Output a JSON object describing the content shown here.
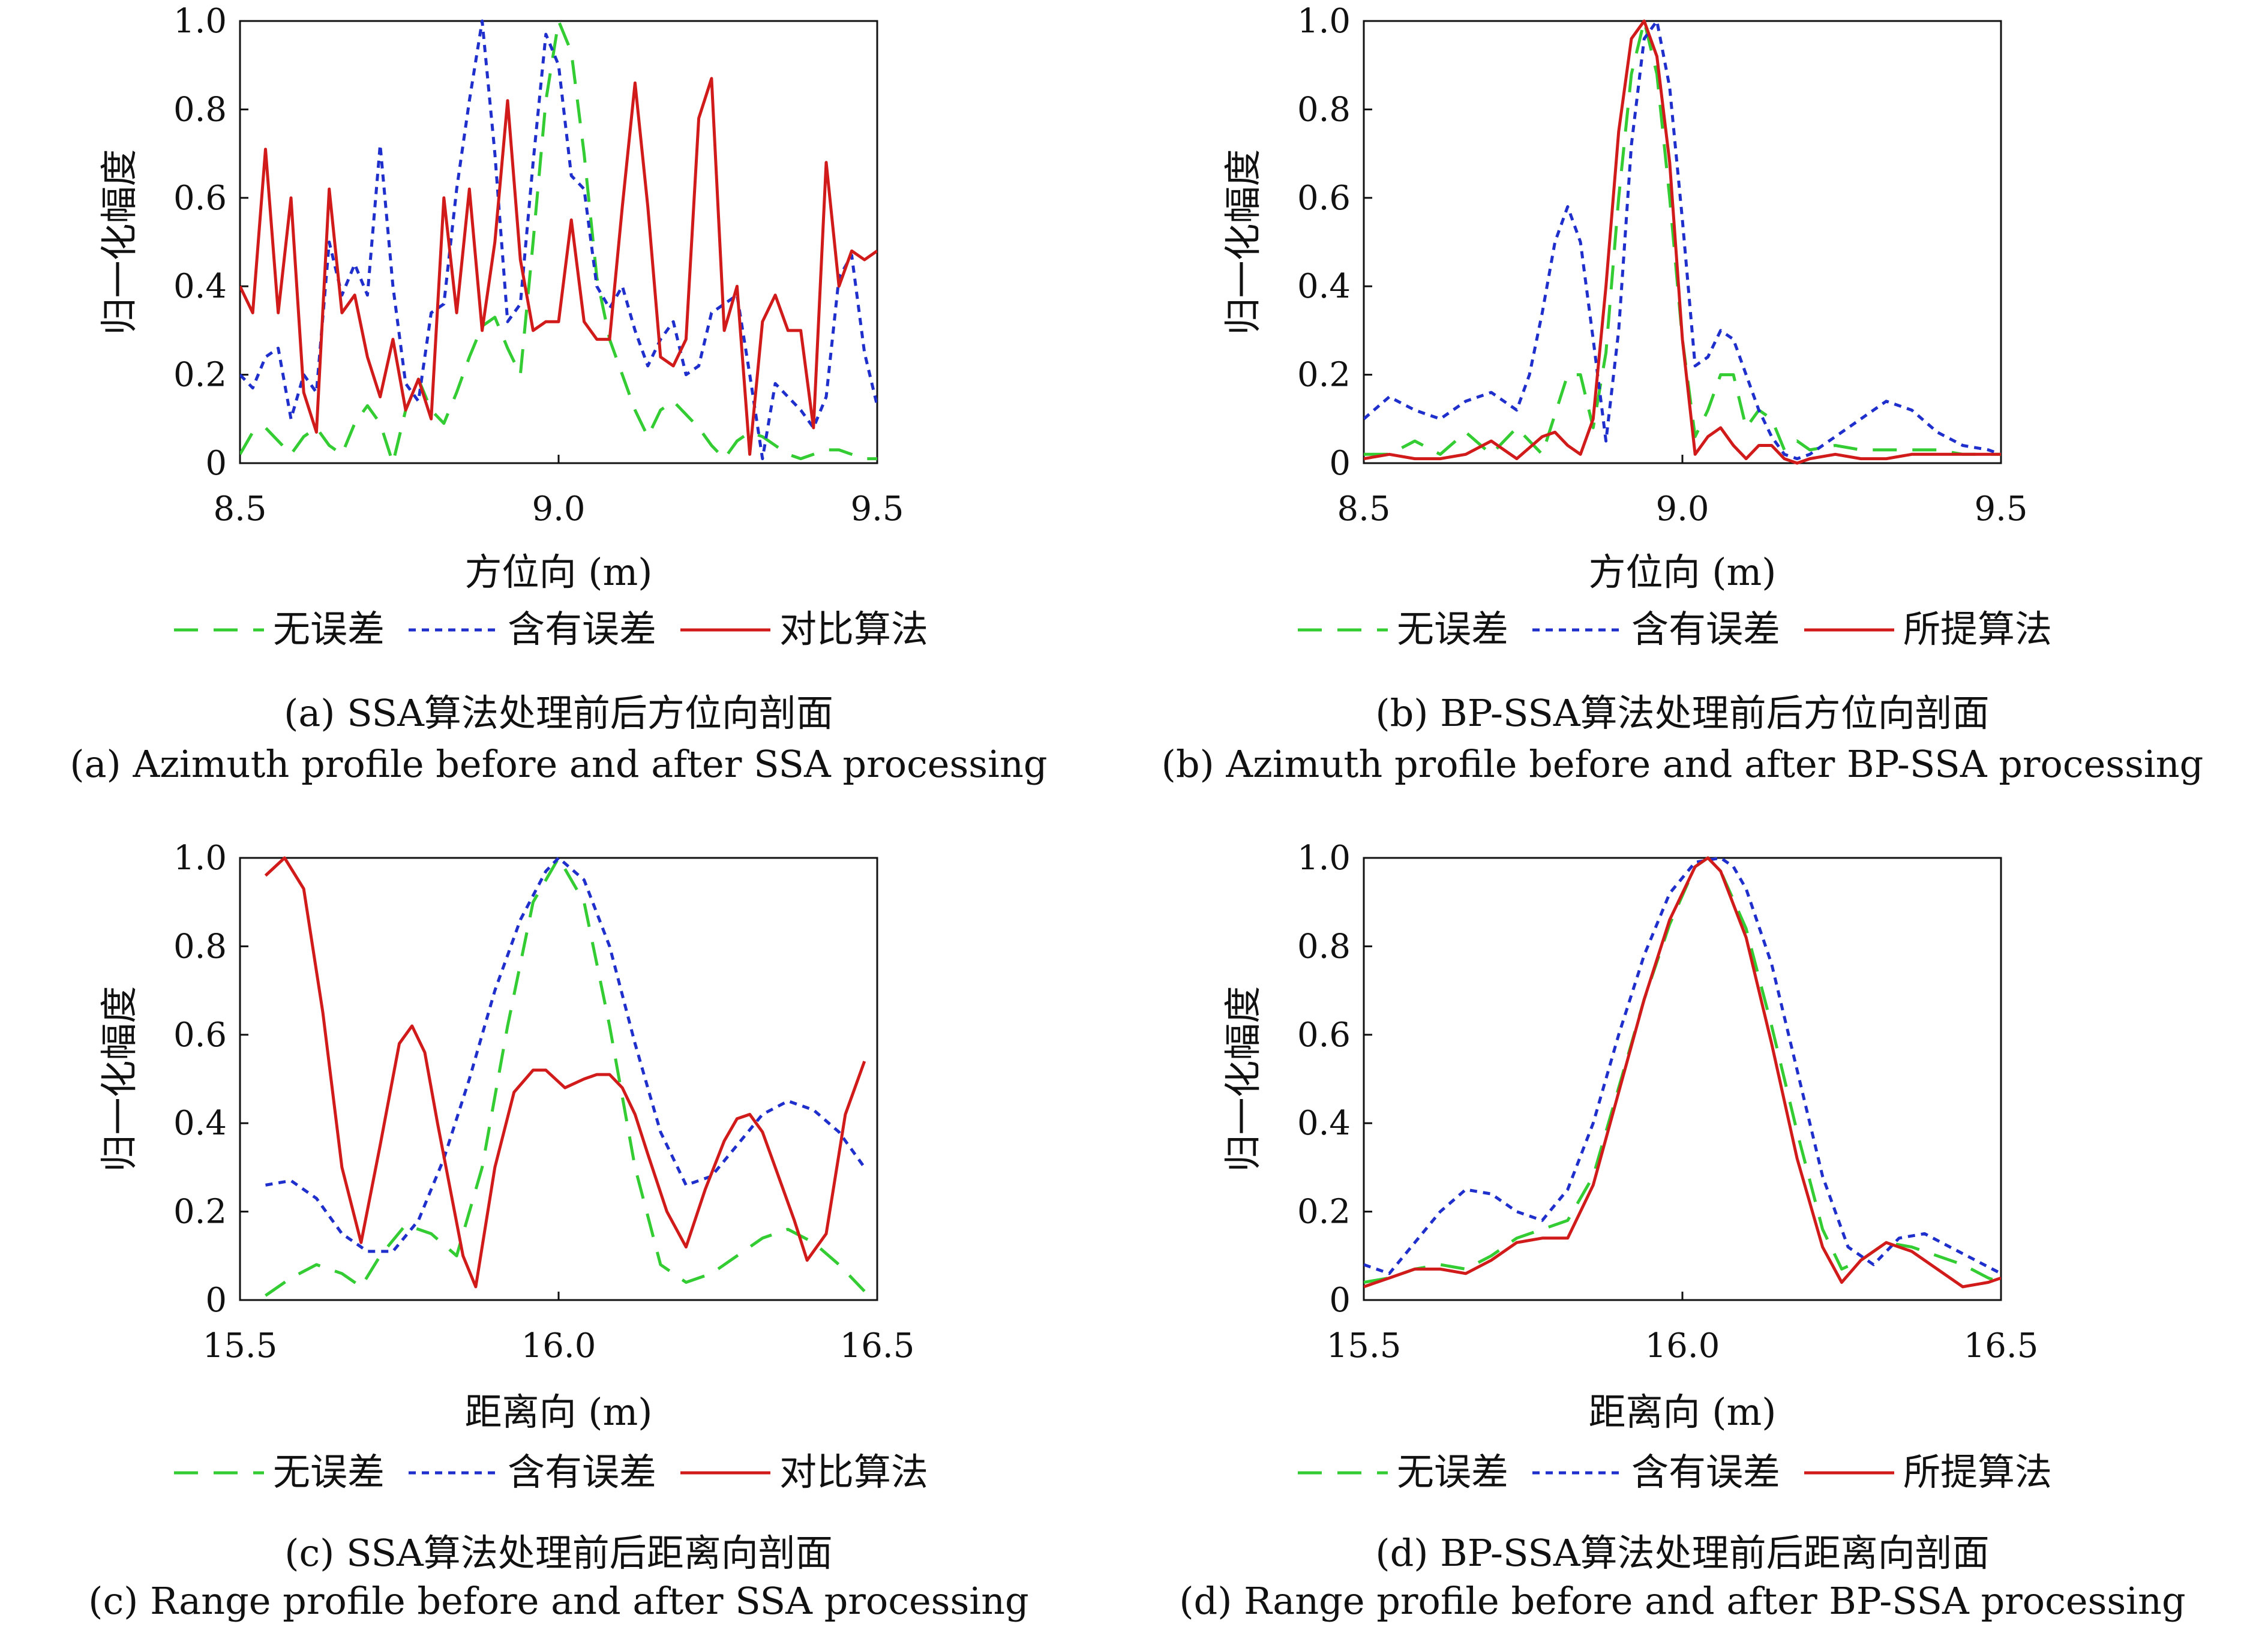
{
  "chart_data": [
    {
      "type": "line",
      "id": "a",
      "xlabel": "方位向 (m)",
      "ylabel": "归一化幅度",
      "xlim": [
        8.5,
        9.5
      ],
      "ylim": [
        0,
        1.0
      ],
      "xticks": [
        "8.5",
        "9.0",
        "9.5"
      ],
      "yticks": [
        "0",
        "0.2",
        "0.4",
        "0.6",
        "0.8",
        "1.0"
      ],
      "legend_position": "below",
      "series": [
        {
          "name": "无误差",
          "color": "#33cc33",
          "style": "dashed",
          "x": [
            8.5,
            8.52,
            8.54,
            8.56,
            8.58,
            8.6,
            8.62,
            8.64,
            8.66,
            8.68,
            8.7,
            8.72,
            8.74,
            8.76,
            8.78,
            8.8,
            8.82,
            8.84,
            8.86,
            8.88,
            8.9,
            8.92,
            8.94,
            8.96,
            8.98,
            9.0,
            9.02,
            9.04,
            9.06,
            9.08,
            9.1,
            9.12,
            9.14,
            9.16,
            9.18,
            9.2,
            9.22,
            9.24,
            9.26,
            9.28,
            9.3,
            9.32,
            9.34,
            9.36,
            9.38,
            9.4,
            9.42,
            9.44,
            9.46,
            9.48,
            9.5
          ],
          "y": [
            0.02,
            0.07,
            0.08,
            0.05,
            0.02,
            0.06,
            0.08,
            0.04,
            0.02,
            0.09,
            0.13,
            0.09,
            0.0,
            0.12,
            0.19,
            0.12,
            0.09,
            0.16,
            0.24,
            0.31,
            0.33,
            0.26,
            0.2,
            0.5,
            0.82,
            1.0,
            0.93,
            0.7,
            0.42,
            0.28,
            0.2,
            0.12,
            0.06,
            0.12,
            0.14,
            0.11,
            0.08,
            0.04,
            0.01,
            0.05,
            0.07,
            0.06,
            0.04,
            0.02,
            0.01,
            0.02,
            0.03,
            0.03,
            0.02,
            0.01,
            0.01
          ]
        },
        {
          "name": "含有误差",
          "color": "#1f2fcc",
          "style": "dotted",
          "x": [
            8.5,
            8.52,
            8.54,
            8.56,
            8.58,
            8.6,
            8.62,
            8.64,
            8.66,
            8.68,
            8.7,
            8.72,
            8.74,
            8.76,
            8.78,
            8.8,
            8.82,
            8.84,
            8.86,
            8.88,
            8.9,
            8.92,
            8.94,
            8.96,
            8.98,
            9.0,
            9.02,
            9.04,
            9.06,
            9.08,
            9.1,
            9.12,
            9.14,
            9.16,
            9.18,
            9.2,
            9.22,
            9.24,
            9.26,
            9.28,
            9.3,
            9.32,
            9.34,
            9.36,
            9.38,
            9.4,
            9.42,
            9.44,
            9.46,
            9.48,
            9.5
          ],
          "y": [
            0.2,
            0.17,
            0.24,
            0.26,
            0.1,
            0.2,
            0.16,
            0.5,
            0.38,
            0.45,
            0.38,
            0.72,
            0.4,
            0.18,
            0.14,
            0.34,
            0.36,
            0.62,
            0.82,
            1.0,
            0.7,
            0.32,
            0.36,
            0.68,
            0.97,
            0.9,
            0.65,
            0.62,
            0.4,
            0.35,
            0.4,
            0.3,
            0.22,
            0.28,
            0.32,
            0.2,
            0.22,
            0.34,
            0.36,
            0.38,
            0.2,
            0.01,
            0.18,
            0.15,
            0.12,
            0.08,
            0.15,
            0.42,
            0.47,
            0.25,
            0.13
          ]
        },
        {
          "name": "对比算法",
          "color": "#d11a1a",
          "style": "solid",
          "x": [
            8.5,
            8.52,
            8.54,
            8.56,
            8.58,
            8.6,
            8.62,
            8.64,
            8.66,
            8.68,
            8.7,
            8.72,
            8.74,
            8.76,
            8.78,
            8.8,
            8.82,
            8.84,
            8.86,
            8.88,
            8.9,
            8.92,
            8.94,
            8.96,
            8.98,
            9.0,
            9.02,
            9.04,
            9.06,
            9.08,
            9.1,
            9.12,
            9.14,
            9.16,
            9.18,
            9.2,
            9.22,
            9.24,
            9.26,
            9.28,
            9.3,
            9.32,
            9.34,
            9.36,
            9.38,
            9.4,
            9.42,
            9.44,
            9.46,
            9.48,
            9.5
          ],
          "y": [
            0.4,
            0.34,
            0.71,
            0.34,
            0.6,
            0.16,
            0.07,
            0.62,
            0.34,
            0.38,
            0.24,
            0.15,
            0.28,
            0.12,
            0.19,
            0.1,
            0.6,
            0.34,
            0.62,
            0.3,
            0.5,
            0.82,
            0.46,
            0.3,
            0.32,
            0.32,
            0.55,
            0.32,
            0.28,
            0.28,
            0.58,
            0.86,
            0.58,
            0.24,
            0.22,
            0.28,
            0.78,
            0.87,
            0.3,
            0.4,
            0.02,
            0.32,
            0.38,
            0.3,
            0.3,
            0.08,
            0.68,
            0.4,
            0.48,
            0.46,
            0.48
          ]
        }
      ]
    },
    {
      "type": "line",
      "id": "b",
      "xlabel": "方位向 (m)",
      "ylabel": "归一化幅度",
      "xlim": [
        8.5,
        9.5
      ],
      "ylim": [
        0,
        1.0
      ],
      "xticks": [
        "8.5",
        "9.0",
        "9.5"
      ],
      "yticks": [
        "0",
        "0.2",
        "0.4",
        "0.6",
        "0.8",
        "1.0"
      ],
      "legend_position": "below",
      "series": [
        {
          "name": "无误差",
          "color": "#33cc33",
          "style": "dashed",
          "x": [
            8.5,
            8.54,
            8.58,
            8.62,
            8.66,
            8.7,
            8.74,
            8.78,
            8.82,
            8.84,
            8.86,
            8.88,
            8.9,
            8.92,
            8.94,
            8.96,
            8.98,
            9.0,
            9.02,
            9.04,
            9.06,
            9.08,
            9.1,
            9.12,
            9.14,
            9.16,
            9.18,
            9.2,
            9.24,
            9.28,
            9.32,
            9.36,
            9.4,
            9.44,
            9.48,
            9.5
          ],
          "y": [
            0.02,
            0.02,
            0.05,
            0.02,
            0.07,
            0.02,
            0.08,
            0.02,
            0.2,
            0.2,
            0.08,
            0.25,
            0.6,
            0.88,
            1.0,
            0.88,
            0.6,
            0.28,
            0.06,
            0.12,
            0.2,
            0.2,
            0.08,
            0.12,
            0.1,
            0.03,
            0.05,
            0.03,
            0.04,
            0.03,
            0.03,
            0.03,
            0.03,
            0.02,
            0.02,
            0.02
          ]
        },
        {
          "name": "含有误差",
          "color": "#1f2fcc",
          "style": "dotted",
          "x": [
            8.5,
            8.54,
            8.58,
            8.62,
            8.66,
            8.7,
            8.74,
            8.76,
            8.78,
            8.8,
            8.82,
            8.84,
            8.86,
            8.88,
            8.9,
            8.92,
            8.94,
            8.96,
            8.98,
            9.0,
            9.02,
            9.04,
            9.06,
            9.08,
            9.1,
            9.12,
            9.14,
            9.16,
            9.18,
            9.2,
            9.24,
            9.28,
            9.32,
            9.36,
            9.4,
            9.44,
            9.48,
            9.5
          ],
          "y": [
            0.1,
            0.15,
            0.12,
            0.1,
            0.14,
            0.16,
            0.12,
            0.2,
            0.34,
            0.5,
            0.58,
            0.5,
            0.28,
            0.05,
            0.3,
            0.72,
            0.96,
            1.0,
            0.85,
            0.55,
            0.22,
            0.24,
            0.3,
            0.28,
            0.2,
            0.12,
            0.06,
            0.02,
            0.01,
            0.02,
            0.06,
            0.1,
            0.14,
            0.12,
            0.07,
            0.04,
            0.03,
            0.02
          ]
        },
        {
          "name": "所提算法",
          "color": "#d11a1a",
          "style": "solid",
          "x": [
            8.5,
            8.54,
            8.58,
            8.62,
            8.66,
            8.7,
            8.74,
            8.78,
            8.8,
            8.82,
            8.84,
            8.86,
            8.88,
            8.9,
            8.92,
            8.94,
            8.96,
            8.98,
            9.0,
            9.02,
            9.04,
            9.06,
            9.08,
            9.1,
            9.12,
            9.14,
            9.16,
            9.18,
            9.2,
            9.24,
            9.28,
            9.32,
            9.36,
            9.4,
            9.44,
            9.48,
            9.5
          ],
          "y": [
            0.01,
            0.02,
            0.01,
            0.01,
            0.02,
            0.05,
            0.01,
            0.06,
            0.07,
            0.04,
            0.02,
            0.1,
            0.4,
            0.75,
            0.96,
            1.0,
            0.92,
            0.68,
            0.28,
            0.02,
            0.06,
            0.08,
            0.04,
            0.01,
            0.04,
            0.04,
            0.01,
            0.0,
            0.01,
            0.02,
            0.01,
            0.01,
            0.02,
            0.02,
            0.02,
            0.02,
            0.02
          ]
        }
      ]
    },
    {
      "type": "line",
      "id": "c",
      "xlabel": "距离向 (m)",
      "ylabel": "归一化幅度",
      "xlim": [
        15.5,
        16.5
      ],
      "ylim": [
        0,
        1.0
      ],
      "xticks": [
        "15.5",
        "16.0",
        "16.5"
      ],
      "yticks": [
        "0",
        "0.2",
        "0.4",
        "0.6",
        "0.8",
        "1.0"
      ],
      "legend_position": "below",
      "series": [
        {
          "name": "无误差",
          "color": "#33cc33",
          "style": "dashed",
          "x": [
            15.54,
            15.58,
            15.62,
            15.66,
            15.69,
            15.72,
            15.76,
            15.8,
            15.84,
            15.88,
            15.92,
            15.96,
            16.0,
            16.04,
            16.08,
            16.12,
            16.16,
            16.2,
            16.24,
            16.28,
            16.32,
            16.36,
            16.4,
            16.44,
            16.48
          ],
          "y": [
            0.01,
            0.05,
            0.08,
            0.06,
            0.03,
            0.1,
            0.17,
            0.15,
            0.1,
            0.3,
            0.62,
            0.9,
            1.0,
            0.9,
            0.62,
            0.3,
            0.08,
            0.04,
            0.06,
            0.1,
            0.14,
            0.16,
            0.13,
            0.08,
            0.02
          ]
        },
        {
          "name": "含有误差",
          "color": "#1f2fcc",
          "style": "dotted",
          "x": [
            15.54,
            15.58,
            15.62,
            15.66,
            15.7,
            15.74,
            15.78,
            15.82,
            15.86,
            15.9,
            15.94,
            15.98,
            16.0,
            16.04,
            16.08,
            16.12,
            16.16,
            16.2,
            16.24,
            16.28,
            16.32,
            16.36,
            16.4,
            16.44,
            16.48
          ],
          "y": [
            0.26,
            0.27,
            0.23,
            0.15,
            0.11,
            0.11,
            0.18,
            0.32,
            0.5,
            0.7,
            0.86,
            0.97,
            1.0,
            0.95,
            0.8,
            0.58,
            0.38,
            0.26,
            0.28,
            0.35,
            0.42,
            0.45,
            0.43,
            0.38,
            0.3
          ]
        },
        {
          "name": "对比算法",
          "color": "#d11a1a",
          "style": "solid",
          "x": [
            15.54,
            15.57,
            15.6,
            15.63,
            15.66,
            15.69,
            15.72,
            15.75,
            15.77,
            15.79,
            15.81,
            15.83,
            15.85,
            15.87,
            15.9,
            15.93,
            15.96,
            15.98,
            16.01,
            16.04,
            16.06,
            16.08,
            16.1,
            16.12,
            16.14,
            16.17,
            16.2,
            16.23,
            16.26,
            16.28,
            16.3,
            16.32,
            16.34,
            16.37,
            16.39,
            16.42,
            16.45,
            16.48
          ],
          "y": [
            0.96,
            1.0,
            0.93,
            0.65,
            0.3,
            0.13,
            0.35,
            0.58,
            0.62,
            0.56,
            0.4,
            0.25,
            0.1,
            0.03,
            0.3,
            0.47,
            0.52,
            0.52,
            0.48,
            0.5,
            0.51,
            0.51,
            0.48,
            0.42,
            0.33,
            0.2,
            0.12,
            0.25,
            0.36,
            0.41,
            0.42,
            0.38,
            0.3,
            0.18,
            0.09,
            0.15,
            0.42,
            0.54
          ]
        }
      ]
    },
    {
      "type": "line",
      "id": "d",
      "xlabel": "距离向 (m)",
      "ylabel": "归一化幅度",
      "xlim": [
        15.5,
        16.5
      ],
      "ylim": [
        0,
        1.0
      ],
      "xticks": [
        "15.5",
        "16.0",
        "16.5"
      ],
      "yticks": [
        "0",
        "0.2",
        "0.4",
        "0.6",
        "0.8",
        "1.0"
      ],
      "legend_position": "below",
      "series": [
        {
          "name": "无误差",
          "color": "#33cc33",
          "style": "dashed",
          "x": [
            15.5,
            15.54,
            15.58,
            15.62,
            15.66,
            15.7,
            15.74,
            15.78,
            15.82,
            15.86,
            15.9,
            15.94,
            15.98,
            16.02,
            16.04,
            16.06,
            16.1,
            16.14,
            16.18,
            16.22,
            16.25,
            16.28,
            16.32,
            16.36,
            16.4,
            16.44,
            16.48,
            16.5
          ],
          "y": [
            0.04,
            0.05,
            0.07,
            0.08,
            0.07,
            0.1,
            0.14,
            0.16,
            0.18,
            0.28,
            0.48,
            0.68,
            0.85,
            0.98,
            1.0,
            0.97,
            0.84,
            0.62,
            0.38,
            0.16,
            0.07,
            0.09,
            0.13,
            0.12,
            0.1,
            0.08,
            0.05,
            0.04
          ]
        },
        {
          "name": "含有误差",
          "color": "#1f2fcc",
          "style": "dotted",
          "x": [
            15.5,
            15.54,
            15.58,
            15.62,
            15.66,
            15.7,
            15.74,
            15.78,
            15.82,
            15.86,
            15.9,
            15.94,
            15.98,
            16.02,
            16.06,
            16.08,
            16.1,
            16.14,
            16.18,
            16.22,
            16.26,
            16.3,
            16.34,
            16.38,
            16.42,
            16.46,
            16.5
          ],
          "y": [
            0.08,
            0.06,
            0.13,
            0.2,
            0.25,
            0.24,
            0.2,
            0.18,
            0.25,
            0.4,
            0.6,
            0.78,
            0.92,
            0.99,
            1.0,
            0.98,
            0.93,
            0.76,
            0.52,
            0.28,
            0.12,
            0.08,
            0.14,
            0.15,
            0.12,
            0.09,
            0.06
          ]
        },
        {
          "name": "所提算法",
          "color": "#d11a1a",
          "style": "solid",
          "x": [
            15.5,
            15.54,
            15.58,
            15.62,
            15.66,
            15.7,
            15.74,
            15.78,
            15.82,
            15.86,
            15.9,
            15.94,
            15.98,
            16.02,
            16.04,
            16.06,
            16.1,
            16.14,
            16.18,
            16.22,
            16.25,
            16.28,
            16.32,
            16.36,
            16.4,
            16.44,
            16.48,
            16.5
          ],
          "y": [
            0.03,
            0.05,
            0.07,
            0.07,
            0.06,
            0.09,
            0.13,
            0.14,
            0.14,
            0.26,
            0.47,
            0.68,
            0.86,
            0.98,
            1.0,
            0.97,
            0.82,
            0.58,
            0.32,
            0.12,
            0.04,
            0.09,
            0.13,
            0.11,
            0.07,
            0.03,
            0.04,
            0.05
          ]
        }
      ]
    }
  ],
  "captions": [
    {
      "zh": "(a) SSA算法处理前后方位向剖面",
      "en": "(a) Azimuth profile before and after SSA processing"
    },
    {
      "zh": "(b) BP-SSA算法处理前后方位向剖面",
      "en": "(b) Azimuth profile before and after BP-SSA processing"
    },
    {
      "zh": "(c) SSA算法处理前后距离向剖面",
      "en": "(c) Range profile before and after SSA processing"
    },
    {
      "zh": "(d) BP-SSA算法处理前后距离向剖面",
      "en": "(d) Range profile before and after BP-SSA processing"
    }
  ]
}
